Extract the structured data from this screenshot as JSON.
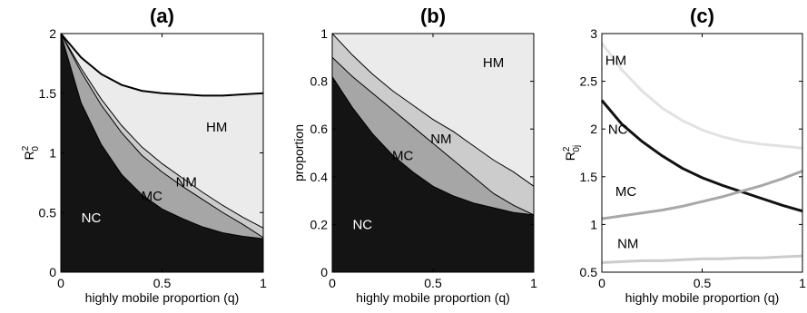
{
  "chart_data": [
    {
      "type": "area",
      "panel": "(a)",
      "title": "(a)",
      "xlabel": "highly mobile proportion (q)",
      "ylabel": {
        "base": "R",
        "sup": "2",
        "sub": "0"
      },
      "xlim": [
        0,
        1
      ],
      "ylim": [
        0,
        2
      ],
      "xticks": [
        "0",
        "0.5",
        "1"
      ],
      "yticks": [
        "0",
        "0.5",
        "1",
        "1.5",
        "2"
      ],
      "ytick_values": [
        0,
        0.5,
        1,
        1.5,
        2
      ],
      "xtick_values": [
        0,
        0.5,
        1
      ],
      "grid": false,
      "x": [
        0,
        0.1,
        0.2,
        0.3,
        0.4,
        0.5,
        0.6,
        0.7,
        0.8,
        0.9,
        1.0
      ],
      "series": [
        {
          "name": "NC",
          "values": [
            2.0,
            1.42,
            1.07,
            0.82,
            0.65,
            0.53,
            0.45,
            0.38,
            0.33,
            0.3,
            0.28
          ],
          "color": "#141414"
        },
        {
          "name": "MC",
          "values": [
            2.0,
            1.68,
            1.4,
            1.17,
            0.98,
            0.84,
            0.72,
            0.61,
            0.5,
            0.4,
            0.29
          ],
          "color": "#a6a6a6"
        },
        {
          "name": "NM",
          "values": [
            2.0,
            1.71,
            1.45,
            1.23,
            1.05,
            0.91,
            0.79,
            0.67,
            0.56,
            0.46,
            0.37
          ],
          "color": "#cccccc"
        },
        {
          "name": "HM",
          "values": [
            2.0,
            1.8,
            1.66,
            1.57,
            1.52,
            1.5,
            1.49,
            1.48,
            1.48,
            1.49,
            1.5
          ],
          "color": "#ebebeb"
        }
      ],
      "region_labels": [
        {
          "text": "NC",
          "x": 0.15,
          "y": 0.42,
          "color": "#ffffff"
        },
        {
          "text": "MC",
          "x": 0.45,
          "y": 0.6,
          "color": "#000000"
        },
        {
          "text": "NM",
          "x": 0.62,
          "y": 0.72,
          "color": "#000000"
        },
        {
          "text": "HM",
          "x": 0.77,
          "y": 1.18,
          "color": "#000000"
        }
      ]
    },
    {
      "type": "area",
      "panel": "(b)",
      "title": "(b)",
      "xlabel": "highly mobile proportion (q)",
      "ylabel": "proportion",
      "xlim": [
        0,
        1
      ],
      "ylim": [
        0,
        1
      ],
      "xticks": [
        "0",
        "0.5",
        "1"
      ],
      "yticks": [
        "0",
        "0.2",
        "0.4",
        "0.6",
        "0.8",
        "1"
      ],
      "ytick_values": [
        0,
        0.2,
        0.4,
        0.6,
        0.8,
        1
      ],
      "xtick_values": [
        0,
        0.5,
        1
      ],
      "grid": false,
      "x": [
        0,
        0.1,
        0.2,
        0.3,
        0.4,
        0.5,
        0.6,
        0.7,
        0.8,
        0.9,
        1.0
      ],
      "series": [
        {
          "name": "NC",
          "values": [
            0.82,
            0.69,
            0.58,
            0.49,
            0.42,
            0.36,
            0.32,
            0.29,
            0.27,
            0.25,
            0.24
          ],
          "color": "#141414"
        },
        {
          "name": "MC",
          "values": [
            0.9,
            0.82,
            0.75,
            0.68,
            0.61,
            0.54,
            0.47,
            0.4,
            0.33,
            0.28,
            0.24
          ],
          "color": "#a6a6a6"
        },
        {
          "name": "NM",
          "values": [
            1.0,
            0.91,
            0.83,
            0.76,
            0.7,
            0.64,
            0.59,
            0.53,
            0.47,
            0.42,
            0.36
          ],
          "color": "#cccccc"
        },
        {
          "name": "HM",
          "values": [
            1.0,
            1.0,
            1.0,
            1.0,
            1.0,
            1.0,
            1.0,
            1.0,
            1.0,
            1.0,
            1.0
          ],
          "color": "#ebebeb"
        }
      ],
      "region_labels": [
        {
          "text": "NC",
          "x": 0.15,
          "y": 0.18,
          "color": "#ffffff"
        },
        {
          "text": "MC",
          "x": 0.35,
          "y": 0.47,
          "color": "#000000"
        },
        {
          "text": "NM",
          "x": 0.54,
          "y": 0.54,
          "color": "#000000"
        },
        {
          "text": "HM",
          "x": 0.8,
          "y": 0.86,
          "color": "#000000"
        }
      ]
    },
    {
      "type": "line",
      "panel": "(c)",
      "title": "(c)",
      "xlabel": "highly mobile proportion (q)",
      "ylabel": {
        "base": "R",
        "sup": "2",
        "sub": "0j"
      },
      "xlim": [
        0,
        1
      ],
      "ylim": [
        0.5,
        3
      ],
      "xticks": [
        "0",
        "0.5",
        "1"
      ],
      "yticks": [
        "0.5",
        "1",
        "1.5",
        "2",
        "2.5",
        "3"
      ],
      "ytick_values": [
        0.5,
        1,
        1.5,
        2,
        2.5,
        3
      ],
      "xtick_values": [
        0,
        0.5,
        1
      ],
      "grid": false,
      "x": [
        0,
        0.1,
        0.2,
        0.3,
        0.4,
        0.5,
        0.6,
        0.7,
        0.8,
        0.9,
        1.0
      ],
      "series": [
        {
          "name": "HM",
          "values": [
            2.9,
            2.62,
            2.4,
            2.22,
            2.09,
            1.99,
            1.92,
            1.87,
            1.84,
            1.82,
            1.8
          ],
          "color": "#e2e2e2"
        },
        {
          "name": "NC",
          "values": [
            2.3,
            2.05,
            1.87,
            1.72,
            1.59,
            1.49,
            1.41,
            1.34,
            1.27,
            1.2,
            1.14
          ],
          "color": "#111111"
        },
        {
          "name": "MC",
          "values": [
            1.06,
            1.09,
            1.12,
            1.15,
            1.19,
            1.24,
            1.29,
            1.35,
            1.41,
            1.48,
            1.56
          ],
          "color": "#a8a8a8"
        },
        {
          "name": "NM",
          "values": [
            0.6,
            0.61,
            0.62,
            0.62,
            0.63,
            0.64,
            0.64,
            0.65,
            0.65,
            0.66,
            0.67
          ],
          "color": "#cccccc"
        }
      ],
      "region_labels": [
        {
          "text": "HM",
          "x": 0.07,
          "y": 2.67,
          "color": "#000000"
        },
        {
          "text": "NC",
          "x": 0.08,
          "y": 1.95,
          "color": "#000000"
        },
        {
          "text": "MC",
          "x": 0.12,
          "y": 1.3,
          "color": "#000000"
        },
        {
          "text": "NM",
          "x": 0.13,
          "y": 0.75,
          "color": "#000000"
        }
      ]
    }
  ]
}
